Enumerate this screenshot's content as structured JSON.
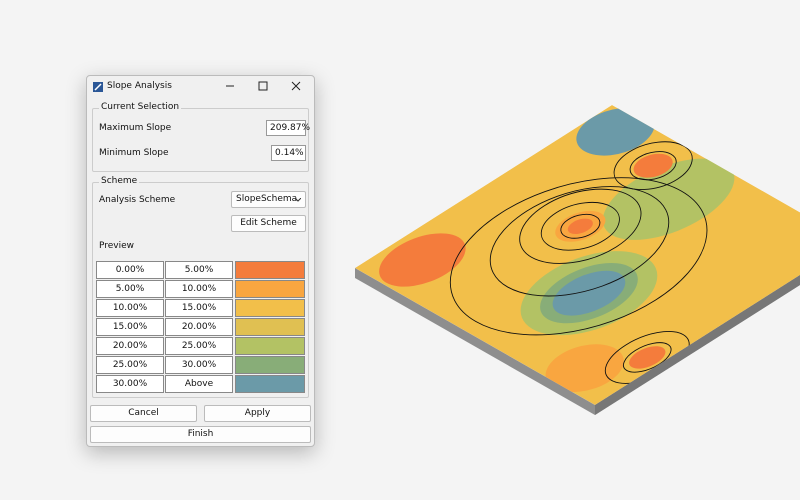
{
  "window": {
    "title": "Slope Analysis"
  },
  "current_selection": {
    "title": "Current Selection",
    "fields": [
      {
        "label": "Maximum Slope",
        "value": "209.87%"
      },
      {
        "label": "Minimum Slope",
        "value": "0.14%"
      }
    ]
  },
  "scheme": {
    "title": "Scheme",
    "analysis_scheme_label": "Analysis Scheme",
    "analysis_scheme_value": "SlopeSchema",
    "edit_button": "Edit Scheme",
    "preview_label": "Preview",
    "rows": [
      {
        "from": "0.00%",
        "to": "5.00%",
        "color": "#f47c3c"
      },
      {
        "from": "5.00%",
        "to": "10.00%",
        "color": "#f9a640"
      },
      {
        "from": "10.00%",
        "to": "15.00%",
        "color": "#f2bf4a"
      },
      {
        "from": "15.00%",
        "to": "20.00%",
        "color": "#e0c052"
      },
      {
        "from": "20.00%",
        "to": "25.00%",
        "color": "#b3c264"
      },
      {
        "from": "25.00%",
        "to": "30.00%",
        "color": "#88ad78"
      },
      {
        "from": "30.00%",
        "to": "Above",
        "color": "#6b9aa8"
      }
    ]
  },
  "buttons": {
    "cancel": "Cancel",
    "apply": "Apply",
    "finish": "Finish"
  }
}
